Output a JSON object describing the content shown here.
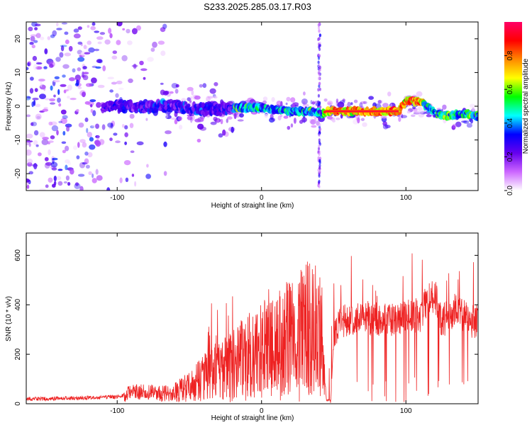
{
  "title": "S233.2025.285.03.17.R03",
  "chart_data": [
    {
      "type": "heatmap",
      "name": "spectrogram",
      "xlabel": "Height of straight line (km)",
      "ylabel": "Frequency (Hz)",
      "xlim": [
        -163,
        150
      ],
      "ylim": [
        -25,
        25
      ],
      "xticks": [
        -100,
        0,
        100
      ],
      "xtick_labels": [
        "-100",
        "0",
        "100"
      ],
      "yticks": [
        -20,
        -10,
        0,
        10,
        20
      ],
      "ytick_labels": [
        "-20",
        "-10",
        "0",
        "10",
        "20"
      ],
      "ridge_line": {
        "x": [
          -163,
          -110,
          -100,
          -80,
          -60,
          -40,
          -20,
          0,
          20,
          35,
          42,
          45,
          60,
          80,
          95,
          100,
          110,
          120,
          130,
          140,
          150
        ],
        "y": [
          0,
          0,
          0,
          0,
          0,
          -1,
          -0.5,
          -0.5,
          -1.5,
          -1.5,
          -2,
          -1.5,
          -1.5,
          -1.5,
          -1.5,
          1.5,
          1.5,
          -2,
          -3,
          -2,
          -3
        ]
      },
      "colorbar": {
        "label": "Normalized spectral amplitude",
        "range": [
          0,
          1
        ],
        "ticks": [
          0,
          0.2,
          0.4,
          0.6,
          0.8
        ],
        "tick_labels": [
          "0.0",
          "0.2",
          "0.4",
          "0.6",
          "0.8"
        ],
        "colors": [
          "#ffffff",
          "#cc66ff",
          "#6600ee",
          "#0000ff",
          "#00ffff",
          "#00ff00",
          "#ffff00",
          "#ff8800",
          "#ff0000",
          "#ff0066"
        ]
      }
    },
    {
      "type": "line",
      "name": "snr",
      "xlabel": "Height of straight line (km)",
      "ylabel": "SNR (10 * v/v)",
      "xlim": [
        -163,
        150
      ],
      "ylim": [
        0,
        690
      ],
      "xticks": [
        -100,
        0,
        100
      ],
      "xtick_labels": [
        "-100",
        "0",
        "100"
      ],
      "yticks": [
        0,
        200,
        400,
        600
      ],
      "ytick_labels": [
        "0",
        "200",
        "400",
        "600"
      ],
      "color": "#ee2222",
      "series": [
        {
          "name": "SNR",
          "x": [
            -163,
            -150,
            -140,
            -130,
            -120,
            -110,
            -100,
            -90,
            -80,
            -70,
            -60,
            -50,
            -40,
            -30,
            -20,
            -10,
            0,
            10,
            20,
            30,
            35,
            40,
            45,
            48,
            50,
            55,
            60,
            70,
            80,
            90,
            100,
            110,
            115,
            120,
            125,
            130,
            135,
            140,
            145,
            150
          ],
          "y": [
            20,
            20,
            22,
            22,
            24,
            25,
            28,
            45,
            50,
            40,
            45,
            70,
            110,
            130,
            160,
            190,
            220,
            240,
            260,
            300,
            330,
            300,
            15,
            15,
            270,
            330,
            340,
            350,
            340,
            340,
            350,
            360,
            420,
            440,
            330,
            360,
            380,
            360,
            330,
            340
          ]
        }
      ]
    }
  ]
}
